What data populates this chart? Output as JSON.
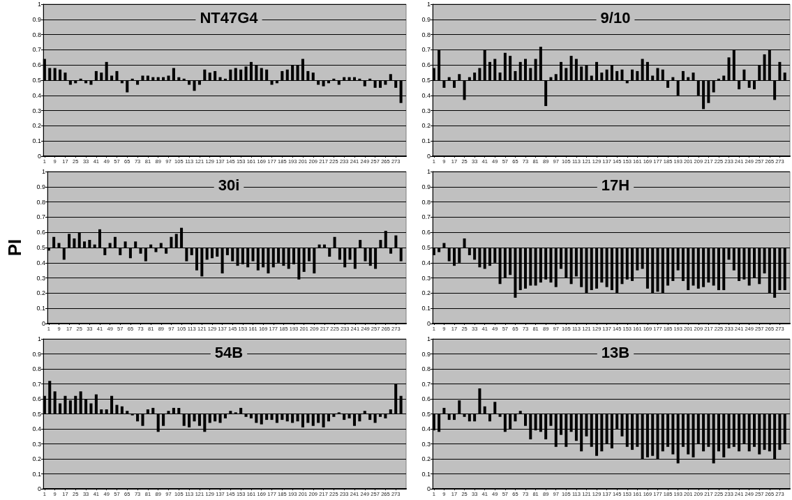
{
  "chart_data": [
    {
      "type": "bar",
      "title": "NT47G4",
      "color": "#000000",
      "xlim": [
        0,
        281
      ],
      "xticks": [
        1,
        9,
        17,
        25,
        33,
        41,
        49,
        57,
        65,
        73,
        81,
        89,
        97,
        105,
        113,
        121,
        129,
        137,
        145,
        153,
        161,
        169,
        177,
        185,
        193,
        201,
        209,
        217,
        225,
        233,
        241,
        249,
        257,
        265,
        273
      ],
      "ylim": [
        0,
        1
      ],
      "yticks": [
        0,
        0.1,
        0.2,
        0.3,
        0.4,
        0.5,
        0.6,
        0.7,
        0.8,
        0.9,
        1
      ],
      "grid": "y",
      "x": [
        1,
        5,
        9,
        13,
        17,
        21,
        25,
        29,
        33,
        37,
        41,
        45,
        49,
        53,
        57,
        61,
        65,
        69,
        73,
        77,
        81,
        85,
        89,
        93,
        97,
        101,
        105,
        109,
        113,
        117,
        121,
        125,
        129,
        133,
        137,
        141,
        145,
        149,
        153,
        157,
        161,
        165,
        169,
        173,
        177,
        181,
        185,
        189,
        193,
        197,
        201,
        205,
        209,
        213,
        217,
        221,
        225,
        229,
        233,
        237,
        241,
        245,
        249,
        253,
        257,
        261,
        265,
        269,
        273,
        277
      ],
      "base": [
        0.5,
        0.5,
        0.5,
        0.5,
        0.5,
        0.5,
        0.5,
        0.5,
        0.5,
        0.5,
        0.5,
        0.5,
        0.5,
        0.5,
        0.5,
        0.5,
        0.5,
        0.5,
        0.5,
        0.5,
        0.5,
        0.5,
        0.5,
        0.5,
        0.5,
        0.5,
        0.5,
        0.5,
        0.5,
        0.5,
        0.5,
        0.5,
        0.5,
        0.5,
        0.5,
        0.5,
        0.5,
        0.5,
        0.5,
        0.5,
        0.5,
        0.5,
        0.5,
        0.5,
        0.5,
        0.5,
        0.5,
        0.5,
        0.5,
        0.5,
        0.5,
        0.5,
        0.5,
        0.5,
        0.5,
        0.5,
        0.5,
        0.5,
        0.5,
        0.5,
        0.5,
        0.5,
        0.5,
        0.5,
        0.5,
        0.5,
        0.5,
        0.5,
        0.5,
        0.5
      ],
      "values": [
        0.14,
        0.08,
        0.08,
        0.07,
        0.05,
        -0.03,
        -0.02,
        0.01,
        -0.02,
        -0.03,
        0.06,
        0.05,
        0.12,
        0.03,
        0.06,
        -0.02,
        -0.08,
        0.01,
        -0.03,
        0.03,
        0.03,
        0.02,
        0.02,
        0.02,
        0.03,
        0.08,
        0.02,
        0.01,
        -0.03,
        -0.07,
        -0.03,
        0.07,
        0.05,
        0.06,
        0.02,
        0.01,
        0.07,
        0.08,
        0.07,
        0.09,
        0.12,
        0.1,
        0.08,
        0.07,
        -0.03,
        -0.02,
        0.06,
        0.07,
        0.1,
        0.1,
        0.14,
        0.06,
        0.05,
        -0.03,
        -0.04,
        -0.02,
        0.01,
        -0.03,
        0.02,
        0.02,
        0.02,
        0.01,
        -0.04,
        0.01,
        -0.05,
        -0.05,
        -0.03,
        0.04,
        -0.05,
        -0.15
      ]
    },
    {
      "type": "bar",
      "title": "9/10",
      "color": "#000000",
      "xlim": [
        0,
        281
      ],
      "xticks": [
        1,
        9,
        17,
        25,
        33,
        41,
        49,
        57,
        65,
        73,
        81,
        89,
        97,
        105,
        113,
        121,
        129,
        137,
        145,
        153,
        161,
        169,
        177,
        185,
        193,
        201,
        209,
        217,
        225,
        233,
        241,
        249,
        257,
        265,
        273
      ],
      "ylim": [
        0,
        1
      ],
      "yticks": [
        0,
        0.1,
        0.2,
        0.3,
        0.4,
        0.5,
        0.6,
        0.7,
        0.8,
        0.9,
        1
      ],
      "grid": "y",
      "x": [
        1,
        5,
        9,
        13,
        17,
        21,
        25,
        29,
        33,
        37,
        41,
        45,
        49,
        53,
        57,
        61,
        65,
        69,
        73,
        77,
        81,
        85,
        89,
        93,
        97,
        101,
        105,
        109,
        113,
        117,
        121,
        125,
        129,
        133,
        137,
        141,
        145,
        149,
        153,
        157,
        161,
        165,
        169,
        173,
        177,
        181,
        185,
        189,
        193,
        197,
        201,
        205,
        209,
        213,
        217,
        221,
        225,
        229,
        233,
        237,
        241,
        245,
        249,
        253,
        257,
        261,
        265,
        269,
        273,
        277
      ],
      "base": [
        0.5,
        0.5,
        0.5,
        0.5,
        0.5,
        0.5,
        0.5,
        0.5,
        0.5,
        0.5,
        0.5,
        0.5,
        0.5,
        0.5,
        0.5,
        0.5,
        0.5,
        0.5,
        0.5,
        0.5,
        0.5,
        0.5,
        0.5,
        0.5,
        0.5,
        0.5,
        0.5,
        0.5,
        0.5,
        0.5,
        0.5,
        0.5,
        0.5,
        0.5,
        0.5,
        0.5,
        0.5,
        0.5,
        0.5,
        0.5,
        0.5,
        0.5,
        0.5,
        0.5,
        0.5,
        0.5,
        0.5,
        0.5,
        0.5,
        0.5,
        0.5,
        0.5,
        0.5,
        0.5,
        0.5,
        0.5,
        0.5,
        0.5,
        0.5,
        0.5,
        0.5,
        0.5,
        0.5,
        0.5,
        0.5,
        0.5,
        0.5,
        0.5,
        0.5,
        0.5
      ],
      "values": [
        0.08,
        0.2,
        -0.05,
        0.02,
        -0.05,
        0.04,
        -0.13,
        0.02,
        0.05,
        0.08,
        0.2,
        0.12,
        0.14,
        0.05,
        0.18,
        0.16,
        0.06,
        0.12,
        0.14,
        0.08,
        0.14,
        0.22,
        -0.17,
        0.02,
        0.04,
        0.12,
        0.08,
        0.16,
        0.14,
        0.09,
        0.1,
        0.03,
        0.12,
        0.05,
        0.07,
        0.1,
        0.06,
        0.07,
        -0.02,
        0.07,
        0.06,
        0.14,
        0.12,
        0.03,
        0.08,
        0.07,
        -0.05,
        0.02,
        -0.1,
        0.06,
        0.02,
        0.05,
        -0.1,
        -0.19,
        -0.15,
        -0.08,
        0.01,
        0.03,
        0.15,
        0.2,
        -0.06,
        0.07,
        -0.05,
        -0.06,
        0.1,
        0.17,
        0.2,
        -0.13,
        0.12,
        0.05
      ]
    },
    {
      "type": "bar",
      "title": "30i",
      "ylabel": "PI",
      "color": "#000000",
      "xlim": [
        0,
        281
      ],
      "xticks": [
        1,
        9,
        17,
        25,
        33,
        41,
        49,
        57,
        65,
        73,
        81,
        89,
        97,
        105,
        113,
        121,
        129,
        137,
        145,
        153,
        161,
        169,
        177,
        185,
        193,
        201,
        209,
        217,
        225,
        233,
        241,
        249,
        257,
        265,
        273
      ],
      "ylim": [
        0,
        1
      ],
      "yticks": [
        0,
        0.1,
        0.2,
        0.3,
        0.4,
        0.5,
        0.6,
        0.7,
        0.8,
        0.9,
        1
      ],
      "grid": "y",
      "x": [
        1,
        5,
        9,
        13,
        17,
        21,
        25,
        29,
        33,
        37,
        41,
        45,
        49,
        53,
        57,
        61,
        65,
        69,
        73,
        77,
        81,
        85,
        89,
        93,
        97,
        101,
        105,
        109,
        113,
        117,
        121,
        125,
        129,
        133,
        137,
        141,
        145,
        149,
        153,
        157,
        161,
        165,
        169,
        173,
        177,
        181,
        185,
        189,
        193,
        197,
        201,
        205,
        209,
        213,
        217,
        221,
        225,
        229,
        233,
        237,
        241,
        245,
        249,
        253,
        257,
        261,
        265,
        269,
        273,
        277
      ],
      "base": [
        0.5,
        0.5,
        0.5,
        0.5,
        0.5,
        0.5,
        0.5,
        0.5,
        0.5,
        0.5,
        0.5,
        0.5,
        0.5,
        0.5,
        0.5,
        0.5,
        0.5,
        0.5,
        0.5,
        0.5,
        0.5,
        0.5,
        0.5,
        0.5,
        0.5,
        0.5,
        0.5,
        0.5,
        0.5,
        0.5,
        0.5,
        0.5,
        0.5,
        0.5,
        0.5,
        0.5,
        0.5,
        0.5,
        0.5,
        0.5,
        0.5,
        0.5,
        0.5,
        0.5,
        0.5,
        0.5,
        0.5,
        0.5,
        0.5,
        0.5,
        0.5,
        0.5,
        0.5,
        0.5,
        0.5,
        0.5,
        0.5,
        0.5,
        0.5,
        0.5,
        0.5,
        0.5,
        0.5,
        0.5,
        0.5,
        0.5,
        0.5,
        0.5,
        0.5,
        0.5
      ],
      "values": [
        -0.02,
        0.07,
        0.03,
        -0.08,
        0.09,
        0.06,
        0.1,
        0.04,
        0.05,
        0.02,
        0.12,
        -0.05,
        0.03,
        0.07,
        -0.05,
        0.04,
        -0.07,
        0.04,
        -0.04,
        -0.09,
        0.02,
        -0.03,
        0.03,
        -0.04,
        0.07,
        0.09,
        0.13,
        -0.09,
        -0.05,
        -0.15,
        -0.19,
        -0.08,
        -0.07,
        -0.06,
        -0.17,
        -0.05,
        -0.09,
        -0.12,
        -0.11,
        -0.13,
        -0.09,
        -0.15,
        -0.13,
        -0.17,
        -0.13,
        -0.1,
        -0.12,
        -0.14,
        -0.11,
        -0.21,
        -0.16,
        -0.09,
        -0.17,
        0.02,
        0.02,
        -0.06,
        0.07,
        -0.08,
        -0.13,
        -0.08,
        -0.14,
        0.05,
        -0.09,
        -0.12,
        -0.14,
        0.05,
        0.11,
        -0.04,
        0.08,
        -0.09
      ]
    },
    {
      "type": "bar",
      "title": "17H",
      "color": "#000000",
      "xlim": [
        0,
        281
      ],
      "xticks": [
        1,
        9,
        17,
        25,
        33,
        41,
        49,
        57,
        65,
        73,
        81,
        89,
        97,
        105,
        113,
        121,
        129,
        137,
        145,
        153,
        161,
        169,
        177,
        185,
        193,
        201,
        209,
        217,
        225,
        233,
        241,
        249,
        257,
        265,
        273
      ],
      "ylim": [
        0,
        1
      ],
      "yticks": [
        0,
        0.1,
        0.2,
        0.3,
        0.4,
        0.5,
        0.6,
        0.7,
        0.8,
        0.9,
        1
      ],
      "grid": "y",
      "x": [
        1,
        5,
        9,
        13,
        17,
        21,
        25,
        29,
        33,
        37,
        41,
        45,
        49,
        53,
        57,
        61,
        65,
        69,
        73,
        77,
        81,
        85,
        89,
        93,
        97,
        101,
        105,
        109,
        113,
        117,
        121,
        125,
        129,
        133,
        137,
        141,
        145,
        149,
        153,
        157,
        161,
        165,
        169,
        173,
        177,
        181,
        185,
        189,
        193,
        197,
        201,
        205,
        209,
        213,
        217,
        221,
        225,
        229,
        233,
        237,
        241,
        245,
        249,
        253,
        257,
        261,
        265,
        269,
        273,
        277
      ],
      "base": [
        0.5,
        0.5,
        0.5,
        0.5,
        0.5,
        0.5,
        0.5,
        0.5,
        0.5,
        0.5,
        0.5,
        0.5,
        0.5,
        0.5,
        0.5,
        0.5,
        0.5,
        0.5,
        0.5,
        0.5,
        0.5,
        0.5,
        0.5,
        0.5,
        0.5,
        0.5,
        0.5,
        0.5,
        0.5,
        0.5,
        0.5,
        0.5,
        0.5,
        0.5,
        0.5,
        0.5,
        0.5,
        0.5,
        0.5,
        0.5,
        0.5,
        0.5,
        0.5,
        0.5,
        0.5,
        0.5,
        0.5,
        0.5,
        0.5,
        0.5,
        0.5,
        0.5,
        0.5,
        0.5,
        0.5,
        0.5,
        0.5,
        0.5,
        0.5,
        0.5,
        0.5,
        0.5,
        0.5,
        0.5,
        0.5,
        0.5,
        0.5,
        0.5,
        0.5,
        0.5
      ],
      "values": [
        -0.05,
        -0.03,
        0.03,
        -0.09,
        -0.12,
        -0.1,
        0.06,
        -0.05,
        -0.08,
        -0.13,
        -0.14,
        -0.12,
        -0.1,
        -0.24,
        -0.2,
        -0.18,
        -0.33,
        -0.28,
        -0.27,
        -0.25,
        -0.25,
        -0.23,
        -0.21,
        -0.23,
        -0.26,
        -0.14,
        -0.2,
        -0.24,
        -0.19,
        -0.26,
        -0.3,
        -0.28,
        -0.27,
        -0.23,
        -0.26,
        -0.28,
        -0.3,
        -0.24,
        -0.21,
        -0.22,
        -0.15,
        -0.14,
        -0.27,
        -0.3,
        -0.29,
        -0.3,
        -0.25,
        -0.22,
        -0.15,
        -0.22,
        -0.28,
        -0.25,
        -0.27,
        -0.26,
        -0.23,
        -0.25,
        -0.28,
        -0.28,
        -0.08,
        -0.15,
        -0.22,
        -0.21,
        -0.25,
        -0.2,
        -0.24,
        -0.17,
        -0.3,
        -0.33,
        -0.28,
        -0.28
      ]
    },
    {
      "type": "bar",
      "title": "54B",
      "color": "#000000",
      "xlim": [
        0,
        281
      ],
      "xticks": [
        1,
        9,
        17,
        25,
        33,
        41,
        49,
        57,
        65,
        73,
        81,
        89,
        97,
        105,
        113,
        121,
        129,
        137,
        145,
        153,
        161,
        169,
        177,
        185,
        193,
        201,
        209,
        217,
        225,
        233,
        241,
        249,
        257,
        265,
        273
      ],
      "ylim": [
        0,
        1
      ],
      "yticks": [
        0,
        0.1,
        0.2,
        0.3,
        0.4,
        0.5,
        0.6,
        0.7,
        0.8,
        0.9,
        1
      ],
      "grid": "y",
      "x": [
        1,
        5,
        9,
        13,
        17,
        21,
        25,
        29,
        33,
        37,
        41,
        45,
        49,
        53,
        57,
        61,
        65,
        69,
        73,
        77,
        81,
        85,
        89,
        93,
        97,
        101,
        105,
        109,
        113,
        117,
        121,
        125,
        129,
        133,
        137,
        141,
        145,
        149,
        153,
        157,
        161,
        165,
        169,
        173,
        177,
        181,
        185,
        189,
        193,
        197,
        201,
        205,
        209,
        213,
        217,
        221,
        225,
        229,
        233,
        237,
        241,
        245,
        249,
        253,
        257,
        261,
        265,
        269,
        273,
        277
      ],
      "base": [
        0.5,
        0.5,
        0.5,
        0.5,
        0.5,
        0.5,
        0.5,
        0.5,
        0.5,
        0.5,
        0.5,
        0.5,
        0.5,
        0.5,
        0.5,
        0.5,
        0.5,
        0.5,
        0.5,
        0.5,
        0.5,
        0.5,
        0.5,
        0.5,
        0.5,
        0.5,
        0.5,
        0.5,
        0.5,
        0.5,
        0.5,
        0.5,
        0.5,
        0.5,
        0.5,
        0.5,
        0.5,
        0.5,
        0.5,
        0.5,
        0.5,
        0.5,
        0.5,
        0.5,
        0.5,
        0.5,
        0.5,
        0.5,
        0.5,
        0.5,
        0.5,
        0.5,
        0.5,
        0.5,
        0.5,
        0.5,
        0.5,
        0.5,
        0.5,
        0.5,
        0.5,
        0.5,
        0.5,
        0.5,
        0.5,
        0.5,
        0.5,
        0.5,
        0.5,
        0.5
      ],
      "values": [
        0.12,
        0.22,
        0.15,
        0.07,
        0.12,
        0.09,
        0.12,
        0.15,
        0.1,
        0.07,
        0.13,
        0.03,
        0.03,
        0.12,
        0.06,
        0.05,
        0.02,
        -0.01,
        -0.05,
        -0.08,
        0.03,
        0.04,
        -0.12,
        -0.08,
        0.02,
        0.04,
        0.04,
        -0.08,
        -0.09,
        -0.05,
        -0.08,
        -0.12,
        -0.06,
        -0.05,
        -0.06,
        -0.03,
        0.02,
        0.01,
        0.04,
        -0.02,
        -0.03,
        -0.06,
        -0.07,
        -0.04,
        -0.04,
        -0.06,
        -0.04,
        -0.05,
        -0.06,
        -0.05,
        -0.09,
        -0.06,
        -0.08,
        -0.06,
        -0.09,
        -0.05,
        -0.02,
        0.01,
        -0.04,
        -0.03,
        -0.08,
        -0.05,
        0.02,
        -0.04,
        -0.06,
        -0.02,
        -0.03,
        0.03,
        0.2,
        0.12
      ]
    },
    {
      "type": "bar",
      "title": "13B",
      "color": "#000000",
      "xlim": [
        0,
        281
      ],
      "xticks": [
        1,
        9,
        17,
        25,
        33,
        41,
        49,
        57,
        65,
        73,
        81,
        89,
        97,
        105,
        113,
        121,
        129,
        137,
        145,
        153,
        161,
        169,
        177,
        185,
        193,
        201,
        209,
        217,
        225,
        233,
        241,
        249,
        257,
        265,
        273
      ],
      "ylim": [
        0,
        1
      ],
      "yticks": [
        0,
        0.1,
        0.2,
        0.3,
        0.4,
        0.5,
        0.6,
        0.7,
        0.8,
        0.9,
        1
      ],
      "grid": "y",
      "x": [
        1,
        5,
        9,
        13,
        17,
        21,
        25,
        29,
        33,
        37,
        41,
        45,
        49,
        53,
        57,
        61,
        65,
        69,
        73,
        77,
        81,
        85,
        89,
        93,
        97,
        101,
        105,
        109,
        113,
        117,
        121,
        125,
        129,
        133,
        137,
        141,
        145,
        149,
        153,
        157,
        161,
        165,
        169,
        173,
        177,
        181,
        185,
        189,
        193,
        197,
        201,
        205,
        209,
        213,
        217,
        221,
        225,
        229,
        233,
        237,
        241,
        245,
        249,
        253,
        257,
        261,
        265,
        269,
        273,
        277
      ],
      "base": [
        0.5,
        0.5,
        0.5,
        0.5,
        0.5,
        0.5,
        0.5,
        0.5,
        0.5,
        0.5,
        0.5,
        0.5,
        0.5,
        0.5,
        0.5,
        0.5,
        0.5,
        0.5,
        0.5,
        0.5,
        0.5,
        0.5,
        0.5,
        0.5,
        0.5,
        0.5,
        0.5,
        0.5,
        0.5,
        0.5,
        0.5,
        0.5,
        0.5,
        0.5,
        0.5,
        0.5,
        0.5,
        0.5,
        0.5,
        0.5,
        0.5,
        0.5,
        0.5,
        0.5,
        0.5,
        0.5,
        0.5,
        0.5,
        0.5,
        0.5,
        0.5,
        0.5,
        0.5,
        0.5,
        0.5,
        0.5,
        0.5,
        0.5,
        0.5,
        0.5,
        0.5,
        0.5,
        0.5,
        0.5,
        0.5,
        0.5,
        0.5,
        0.5,
        0.5,
        0.5
      ],
      "values": [
        -0.11,
        -0.12,
        0.04,
        -0.04,
        -0.04,
        0.09,
        -0.02,
        -0.05,
        -0.05,
        0.17,
        0.05,
        -0.05,
        0.08,
        -0.02,
        -0.12,
        -0.1,
        -0.05,
        0.02,
        -0.08,
        -0.17,
        -0.11,
        -0.12,
        -0.17,
        -0.08,
        -0.22,
        -0.14,
        -0.22,
        -0.12,
        -0.18,
        -0.25,
        -0.15,
        -0.22,
        -0.28,
        -0.25,
        -0.2,
        -0.23,
        -0.1,
        -0.15,
        -0.22,
        -0.24,
        -0.22,
        -0.3,
        -0.29,
        -0.28,
        -0.3,
        -0.25,
        -0.22,
        -0.27,
        -0.33,
        -0.22,
        -0.27,
        -0.29,
        -0.2,
        -0.25,
        -0.22,
        -0.33,
        -0.25,
        -0.29,
        -0.23,
        -0.22,
        -0.25,
        -0.2,
        -0.25,
        -0.22,
        -0.27,
        -0.24,
        -0.25,
        -0.3,
        -0.24,
        -0.2
      ]
    }
  ]
}
